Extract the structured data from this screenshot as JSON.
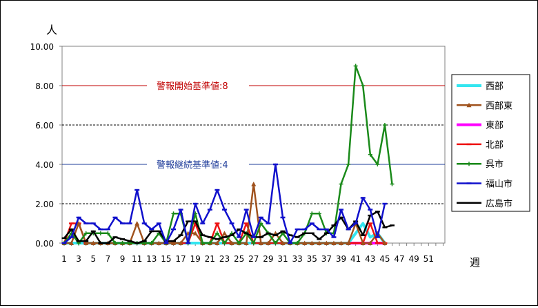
{
  "chart_data": {
    "type": "line",
    "y_unit": "人",
    "x_unit": "週",
    "ylim": [
      0,
      10
    ],
    "y_ticks": [
      "0.00",
      "2.00",
      "4.00",
      "6.00",
      "8.00",
      "10.00"
    ],
    "y_tick_values": [
      0,
      2,
      4,
      6,
      8,
      10
    ],
    "xlim": [
      1,
      53
    ],
    "x_ticks": [
      1,
      3,
      5,
      7,
      9,
      11,
      13,
      15,
      17,
      19,
      21,
      23,
      25,
      27,
      29,
      31,
      33,
      35,
      37,
      39,
      41,
      43,
      45,
      47,
      49,
      51
    ],
    "thresholds": [
      {
        "label": "警報開始基準値:8",
        "value": 8,
        "color": "#c00000"
      },
      {
        "label": "警報継続基準値:4",
        "value": 4,
        "color": "#1f3c9a"
      }
    ],
    "legend_position": "right",
    "series": [
      {
        "name": "西部",
        "color": "#33e6f0",
        "marker": "none",
        "values": [
          0,
          0,
          0,
          0,
          0,
          0,
          0,
          0,
          0,
          0,
          0,
          0,
          0,
          0,
          0,
          0,
          0,
          0,
          0,
          0,
          0,
          0,
          0,
          0,
          0,
          0,
          0,
          0,
          0,
          0,
          0,
          0,
          0,
          0,
          0,
          0,
          0,
          0,
          0,
          0,
          0.5,
          1,
          0.3,
          0.5,
          0
        ]
      },
      {
        "name": "西部東",
        "color": "#a0521d",
        "marker": "triangle",
        "values": [
          0,
          0,
          1,
          0,
          0,
          0,
          0,
          0,
          0,
          0,
          1,
          0,
          0,
          0,
          0,
          0,
          0,
          0.5,
          0.5,
          0,
          0,
          0,
          0.5,
          0,
          0,
          0,
          3,
          0,
          0,
          0.5,
          0,
          0,
          0,
          0,
          0,
          0,
          0,
          0,
          0,
          0,
          1,
          0,
          0,
          0.5,
          0
        ]
      },
      {
        "name": "東部",
        "color": "#ff00ff",
        "marker": "none",
        "values": [
          0,
          0,
          0,
          0,
          0,
          0,
          0,
          0,
          0,
          0,
          0,
          0,
          0,
          0,
          0,
          0,
          0,
          0,
          0,
          0,
          0,
          0,
          0,
          0,
          0,
          0,
          0,
          0,
          0,
          0,
          0,
          0,
          0,
          0,
          0,
          0,
          0,
          0,
          0,
          0,
          0,
          0,
          0,
          0,
          0
        ]
      },
      {
        "name": "北部",
        "color": "#ee1111",
        "marker": "dash",
        "values": [
          0,
          1,
          1,
          0,
          0,
          0,
          0,
          0,
          0,
          0,
          0,
          0,
          0,
          0,
          0,
          0,
          0,
          0,
          1,
          0,
          0,
          1,
          0,
          0,
          0,
          1,
          0,
          0,
          0,
          0,
          0,
          0,
          0,
          0,
          0,
          0,
          0,
          0,
          0,
          0,
          0,
          0,
          1,
          0,
          0
        ]
      },
      {
        "name": "呉市",
        "color": "#1a8a1a",
        "marker": "plus",
        "values": [
          0,
          0.5,
          0,
          0.5,
          0.5,
          0.5,
          0.5,
          0,
          0,
          0,
          0,
          0,
          0,
          0.5,
          0,
          1.5,
          1.5,
          0,
          1.5,
          0,
          0,
          0.5,
          0,
          0.5,
          0,
          0.5,
          0,
          1,
          0.5,
          0,
          0.5,
          0,
          0,
          0.5,
          1.5,
          1.5,
          0.5,
          0.5,
          3,
          4,
          9,
          8,
          4.5,
          4,
          6,
          3
        ]
      },
      {
        "name": "福山市",
        "color": "#1010cc",
        "marker": "dash",
        "values": [
          0,
          0.3,
          1.3,
          1,
          1,
          0.7,
          0.7,
          1.3,
          1,
          1,
          2.7,
          1,
          0.7,
          1,
          0,
          0.7,
          1.7,
          0,
          2,
          1,
          1.7,
          2.7,
          1.7,
          1,
          0.3,
          1.7,
          0.3,
          1.3,
          1,
          4,
          1.3,
          0,
          0.7,
          0.7,
          1,
          0.7,
          0.7,
          0.3,
          1.7,
          0.7,
          1,
          2.3,
          1.7,
          0.3,
          2
        ]
      },
      {
        "name": "広島市",
        "color": "#000000",
        "marker": "dash",
        "values": [
          0.25,
          0.7,
          0.1,
          0.1,
          0.6,
          0,
          0,
          0.3,
          0.2,
          0.1,
          0,
          0.1,
          0.6,
          0.6,
          0.1,
          0.1,
          0.4,
          1.1,
          1.1,
          0.4,
          0.3,
          0.2,
          0.3,
          0.4,
          0.7,
          0.5,
          0.3,
          0.3,
          0.5,
          0.4,
          0.6,
          0.4,
          0.3,
          0.5,
          0.5,
          0.2,
          0.5,
          0.9,
          1.3,
          0.7,
          1.1,
          0.4,
          1.4,
          1.6,
          0.8,
          0.9
        ]
      }
    ]
  }
}
